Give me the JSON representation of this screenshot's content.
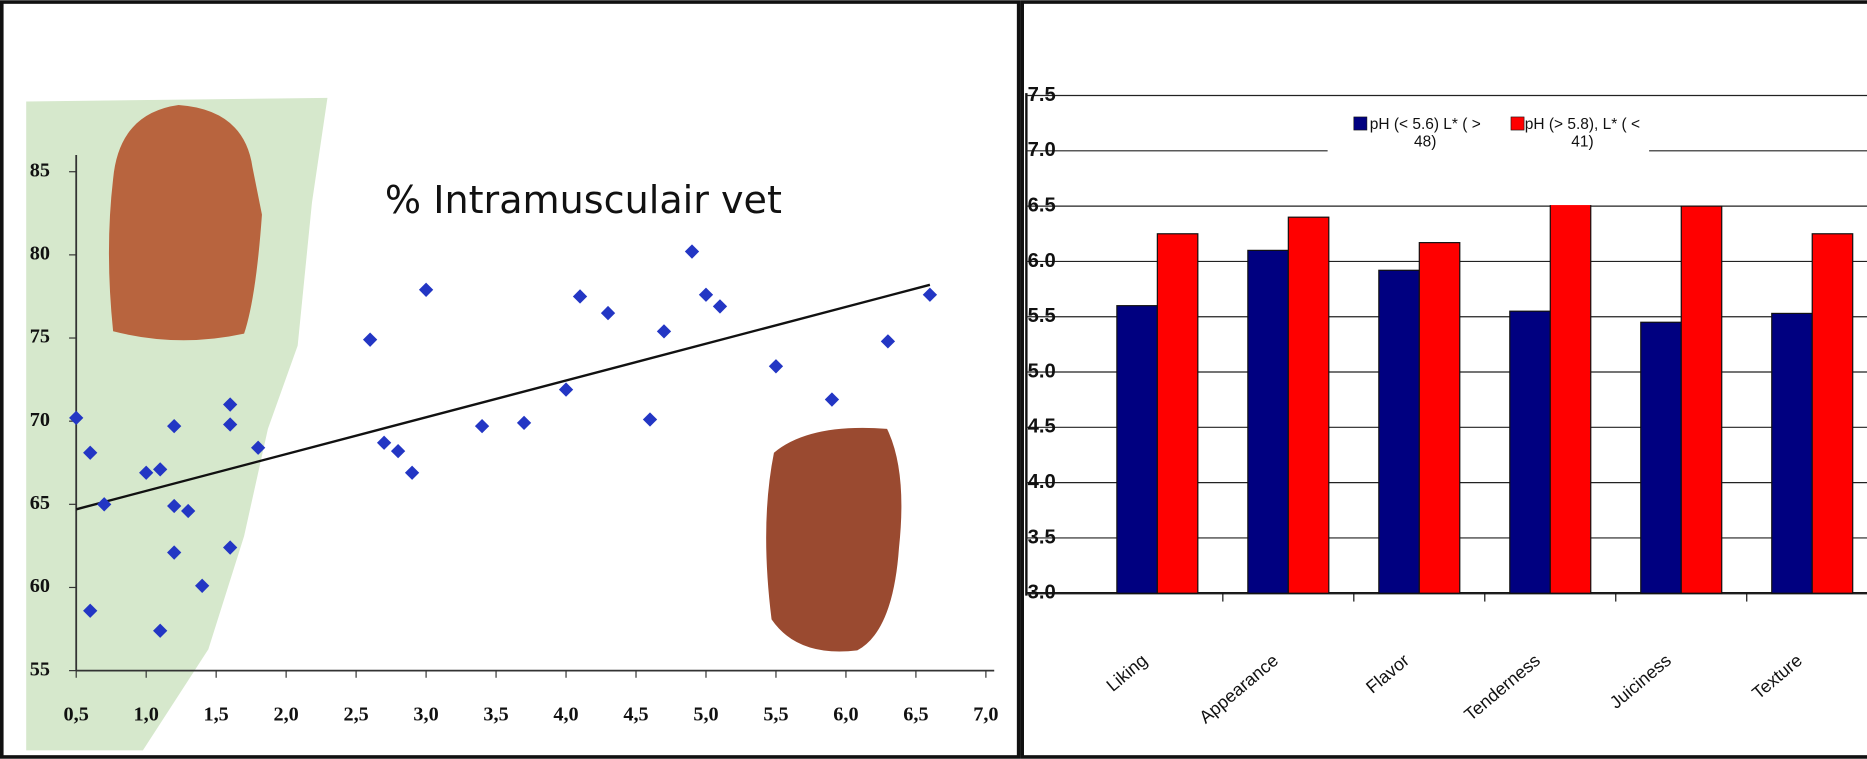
{
  "chart_data": [
    {
      "type": "scatter",
      "title": "% Intramusculair vet",
      "x": [
        0.5,
        0.6,
        0.6,
        0.7,
        1.0,
        1.1,
        1.2,
        1.2,
        1.3,
        1.2,
        1.4,
        1.1,
        1.6,
        1.6,
        1.6,
        1.8,
        2.6,
        2.7,
        2.8,
        2.9,
        3.0,
        3.4,
        3.7,
        4.0,
        4.1,
        4.3,
        4.6,
        4.7,
        4.9,
        5.0,
        5.1,
        5.5,
        5.9,
        6.3,
        6.6
      ],
      "values": [
        70.2,
        68.1,
        58.6,
        65.0,
        66.9,
        67.1,
        69.7,
        64.9,
        64.6,
        62.1,
        60.1,
        57.4,
        71.0,
        69.8,
        62.4,
        68.4,
        74.9,
        68.7,
        68.2,
        66.9,
        77.9,
        69.7,
        69.9,
        71.9,
        77.5,
        76.5,
        70.1,
        75.4,
        80.2,
        77.6,
        76.9,
        73.3,
        71.3,
        74.8,
        77.6
      ],
      "color": "#2336c4",
      "trend_line": {
        "x": [
          0.5,
          6.6
        ],
        "values": [
          64.7,
          78.2
        ],
        "color": "#111111"
      },
      "xlim": [
        0.5,
        7.0
      ],
      "xticks": [
        {
          "value": 0.5,
          "label": "0,5"
        },
        {
          "value": 1.0,
          "label": "1,0"
        },
        {
          "value": 1.5,
          "label": "1,5"
        },
        {
          "value": 2.0,
          "label": "2,0"
        },
        {
          "value": 2.5,
          "label": "2,5"
        },
        {
          "value": 3.0,
          "label": "3,0"
        },
        {
          "value": 3.5,
          "label": "3,5"
        },
        {
          "value": 4.0,
          "label": "4,0"
        },
        {
          "value": 4.5,
          "label": "4,5"
        },
        {
          "value": 5.0,
          "label": "5,0"
        },
        {
          "value": 5.5,
          "label": "5,5"
        },
        {
          "value": 6.0,
          "label": "6,0"
        },
        {
          "value": 6.5,
          "label": "6,5"
        },
        {
          "value": 7.0,
          "label": "7,0"
        }
      ],
      "ylim": [
        55,
        85
      ],
      "yticks": [
        55,
        60,
        65,
        70,
        75,
        80,
        85
      ]
    },
    {
      "type": "bar",
      "categories": [
        "Liking",
        "Appearance",
        "Flavor",
        "Tenderness",
        "Juiciness",
        "Texture"
      ],
      "series": [
        {
          "name": "pH (< 5.6) L* ( > 48)",
          "color": "#000080",
          "values": [
            5.6,
            6.1,
            5.92,
            5.55,
            5.45,
            5.53
          ]
        },
        {
          "name": "pH (> 5.8), L* ( < 41)",
          "color": "#ff0000",
          "values": [
            6.25,
            6.4,
            6.17,
            6.53,
            6.5,
            6.25
          ]
        }
      ],
      "ylim": [
        3.0,
        7.5
      ],
      "yticks": [
        {
          "value": 3,
          "label": "3.0"
        },
        3.5,
        {
          "value": 4,
          "label": "4.0"
        },
        4.5,
        {
          "value": 5,
          "label": "5.0"
        },
        5.5,
        {
          "value": 6,
          "label": "6.0"
        },
        6.5,
        {
          "value": 7,
          "label": "7.0"
        },
        7.5
      ],
      "grid": true
    }
  ]
}
